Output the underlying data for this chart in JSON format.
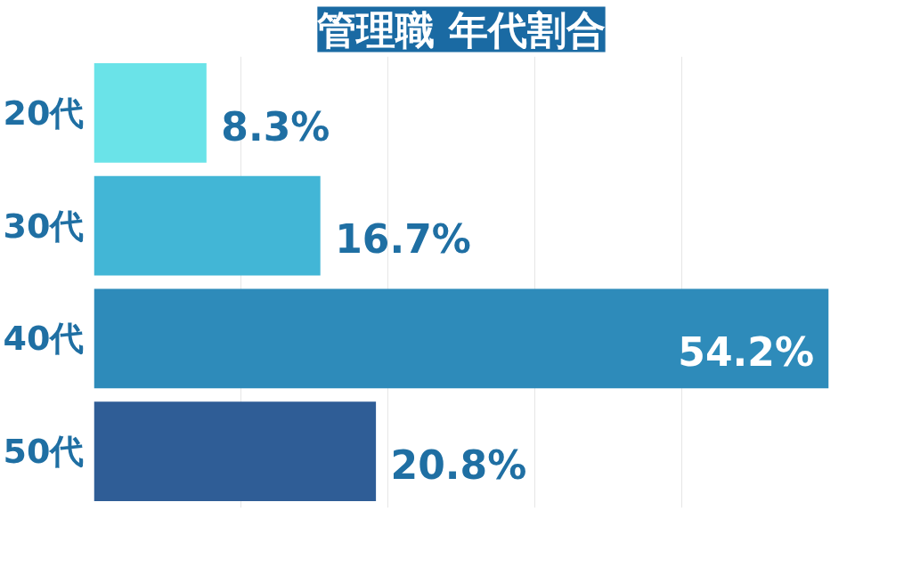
{
  "chart_data": {
    "type": "bar",
    "orientation": "horizontal",
    "title": "管理職 年代割合",
    "categories": [
      "20代",
      "30代",
      "40代",
      "50代"
    ],
    "values": [
      8.3,
      16.7,
      54.2,
      20.8
    ],
    "value_labels": [
      "8.3%",
      "16.7%",
      "54.2%",
      "20.8%"
    ],
    "colors": [
      "#6ae3e8",
      "#42b6d6",
      "#2e8bba",
      "#2f5d96"
    ],
    "grid": "x",
    "tick_labels": "y"
  }
}
